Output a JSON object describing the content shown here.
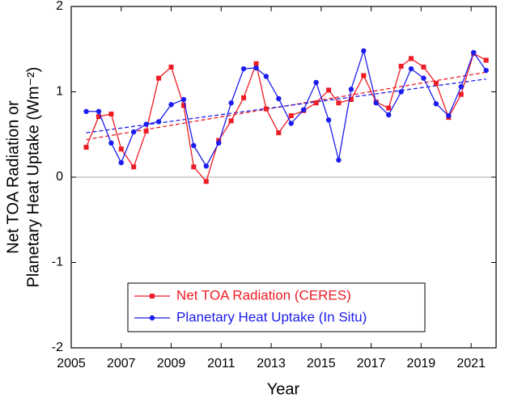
{
  "chart_data": {
    "type": "line",
    "xlabel": "Year",
    "ylabel_lines": [
      "Net TOA Radiation or",
      "Planetary Heat Uptake (Wm⁻²)"
    ],
    "x": [
      2005.6,
      2006.1,
      2006.6,
      2007.0,
      2007.5,
      2008.0,
      2008.5,
      2009.0,
      2009.5,
      2009.9,
      2010.4,
      2010.9,
      2011.4,
      2011.9,
      2012.4,
      2012.8,
      2013.3,
      2013.8,
      2014.3,
      2014.8,
      2015.3,
      2015.7,
      2016.2,
      2016.7,
      2017.2,
      2017.7,
      2018.2,
      2018.6,
      2019.1,
      2019.6,
      2020.1,
      2020.6,
      2021.1,
      2021.6
    ],
    "series": [
      {
        "name": "Net TOA Radiation (CERES)",
        "color": "#ee1c24",
        "marker": "square",
        "values": [
          0.35,
          0.71,
          0.74,
          0.33,
          0.12,
          0.54,
          1.16,
          1.29,
          0.84,
          0.12,
          -0.05,
          0.43,
          0.66,
          0.93,
          1.33,
          0.8,
          0.52,
          0.72,
          0.78,
          0.87,
          1.02,
          0.87,
          0.91,
          1.19,
          0.88,
          0.81,
          1.3,
          1.39,
          1.29,
          1.1,
          0.7,
          0.97,
          1.45,
          1.37
        ]
      },
      {
        "name": "Planetary Heat Uptake (In Situ)",
        "color": "#1c1cee",
        "marker": "circle",
        "values": [
          0.77,
          0.77,
          0.4,
          0.17,
          0.53,
          0.62,
          0.65,
          0.85,
          0.91,
          0.37,
          0.13,
          0.4,
          0.87,
          1.27,
          1.28,
          1.18,
          0.92,
          0.63,
          0.79,
          1.11,
          0.67,
          0.2,
          1.03,
          1.48,
          0.87,
          0.73,
          1.0,
          1.27,
          1.16,
          0.86,
          0.72,
          1.06,
          1.46,
          1.25
        ]
      }
    ],
    "trends": [
      {
        "color": "#ee1c24",
        "x": [
          2005.6,
          2021.6
        ],
        "values": [
          0.44,
          1.23
        ]
      },
      {
        "color": "#1c1cee",
        "x": [
          2005.6,
          2021.6
        ],
        "values": [
          0.52,
          1.15
        ]
      }
    ],
    "xlim": [
      2005,
      2022
    ],
    "xticks": [
      2005,
      2007,
      2009,
      2011,
      2013,
      2015,
      2017,
      2019,
      2021
    ],
    "ylim": [
      -2,
      2
    ],
    "yticks": [
      -2,
      -1,
      0,
      1,
      2
    ],
    "zero_line": true
  }
}
